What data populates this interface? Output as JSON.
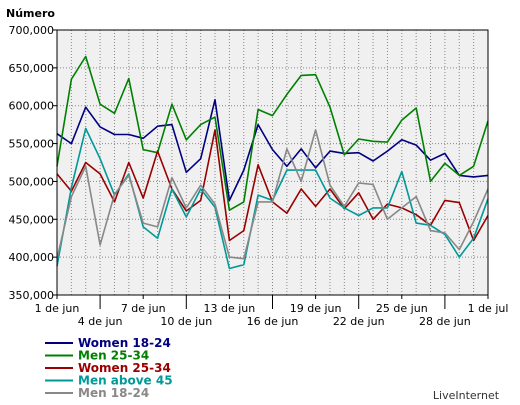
{
  "chart_data": {
    "type": "line",
    "ylabel": "Número",
    "ylim": [
      350000,
      700000
    ],
    "yticks": [
      "350,000",
      "400,000",
      "450,000",
      "500,000",
      "550,000",
      "600,000",
      "650,000",
      "700,000"
    ],
    "ytick_values": [
      350000,
      400000,
      450000,
      500000,
      550000,
      600000,
      650000,
      700000
    ],
    "xtick_labels": [
      "1 de jun",
      "4 de jun",
      "7 de jun",
      "10 de jun",
      "13 de jun",
      "16 de jun",
      "19 de jun",
      "22 de jun",
      "25 de jun",
      "28 de jun",
      "1 de jul"
    ],
    "xtick_positions": [
      0,
      3,
      6,
      9,
      12,
      15,
      18,
      21,
      24,
      27,
      30
    ],
    "xtick_row": [
      0,
      1,
      0,
      1,
      0,
      1,
      0,
      1,
      0,
      1,
      0
    ],
    "x": [
      "1 de jun",
      "2 de jun",
      "3 de jun",
      "4 de jun",
      "5 de jun",
      "6 de jun",
      "7 de jun",
      "8 de jun",
      "9 de jun",
      "10 de jun",
      "11 de jun",
      "12 de jun",
      "13 de jun",
      "14 de jun",
      "15 de jun",
      "16 de jun",
      "17 de jun",
      "18 de jun",
      "19 de jun",
      "20 de jun",
      "21 de jun",
      "22 de jun",
      "23 de jun",
      "24 de jun",
      "25 de jun",
      "26 de jun",
      "27 de jun",
      "28 de jun",
      "29 de jun",
      "30 de jun",
      "1 de jul"
    ],
    "grid": true,
    "legend_position": "bottom-left",
    "series": [
      {
        "name": "Women 18-24",
        "color": "#000080",
        "values": [
          563000,
          550000,
          598000,
          572000,
          562000,
          562000,
          557000,
          573000,
          575000,
          512000,
          530000,
          608000,
          475000,
          515000,
          575000,
          542000,
          520000,
          543000,
          518000,
          540000,
          537000,
          538000,
          527000,
          540000,
          555000,
          548000,
          528000,
          537000,
          508000,
          506000,
          508000
        ]
      },
      {
        "name": "Men 25-34",
        "color": "#008000",
        "values": [
          520000,
          635000,
          665000,
          602000,
          590000,
          636000,
          542000,
          538000,
          602000,
          555000,
          575000,
          585000,
          462000,
          473000,
          595000,
          587000,
          615000,
          640000,
          641000,
          598000,
          535000,
          556000,
          553000,
          552000,
          581000,
          597000,
          500000,
          524000,
          508000,
          520000,
          580000
        ]
      },
      {
        "name": "Women 25-34",
        "color": "#990000",
        "values": [
          510000,
          487000,
          525000,
          510000,
          473000,
          525000,
          478000,
          540000,
          490000,
          461000,
          475000,
          568000,
          422000,
          435000,
          522000,
          473000,
          458000,
          490000,
          467000,
          490000,
          464000,
          485000,
          450000,
          470000,
          465000,
          456000,
          442000,
          475000,
          472000,
          422000,
          455000
        ]
      },
      {
        "name": "Men above 45",
        "color": "#009999",
        "values": [
          388000,
          492000,
          570000,
          530000,
          482000,
          510000,
          440000,
          425000,
          490000,
          453000,
          490000,
          466000,
          385000,
          390000,
          482000,
          475000,
          515000,
          515000,
          515000,
          478000,
          465000,
          455000,
          465000,
          465000,
          513000,
          445000,
          442000,
          430000,
          400000,
          425000,
          477000
        ]
      },
      {
        "name": "Men 18-24",
        "color": "#888888",
        "values": [
          398000,
          480000,
          520000,
          416000,
          483000,
          508000,
          445000,
          440000,
          505000,
          465000,
          495000,
          470000,
          400000,
          398000,
          473000,
          473000,
          543000,
          500000,
          568000,
          495000,
          467000,
          498000,
          496000,
          450000,
          465000,
          480000,
          435000,
          432000,
          410000,
          447000,
          490000
        ]
      }
    ]
  },
  "watermark": "LiveInternet"
}
